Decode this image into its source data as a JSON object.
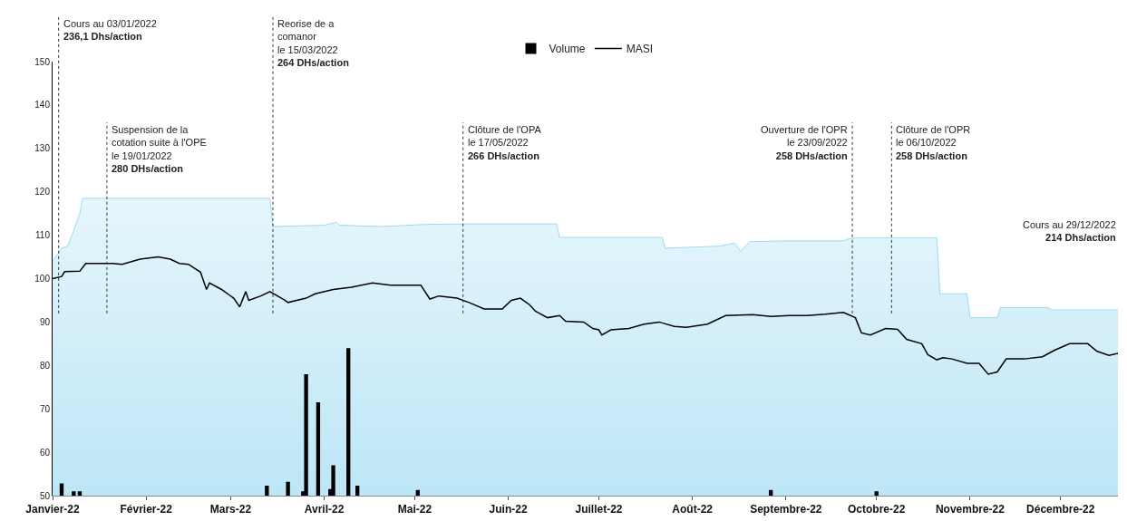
{
  "chart_data": {
    "type": "line",
    "xlim": [
      "2022-01-01",
      "2022-12-20"
    ],
    "xticks": [
      {
        "value": "2022-01-01",
        "label": "Janvier-22"
      },
      {
        "value": "2022-02-01",
        "label": "Février-22"
      },
      {
        "value": "2022-03-01",
        "label": "Mars-22"
      },
      {
        "value": "2022-04-01",
        "label": "Avril-22"
      },
      {
        "value": "2022-05-01",
        "label": "Mai-22"
      },
      {
        "value": "2022-06-01",
        "label": "Juin-22"
      },
      {
        "value": "2022-07-01",
        "label": "Juillet-22"
      },
      {
        "value": "2022-08-01",
        "label": "Août-22"
      },
      {
        "value": "2022-09-01",
        "label": "Septembre-22"
      },
      {
        "value": "2022-10-01",
        "label": "Octobre-22"
      },
      {
        "value": "2022-11-01",
        "label": "Novembre-22"
      },
      {
        "value": "2022-12-01",
        "label": "Décembre-22"
      }
    ],
    "ylim": [
      50,
      150
    ],
    "yticks": [
      50,
      60,
      70,
      80,
      90,
      100,
      110,
      120,
      130,
      140,
      150
    ],
    "grid": false,
    "legend": "top",
    "series": [
      {
        "type": "area",
        "color": "#9edaf2",
        "x": [
          "2022-01-01",
          "2022-01-04",
          "2022-01-06",
          "2022-01-08",
          "2022-01-10",
          "2022-01-11",
          "2022-03-14",
          "2022-03-15",
          "2022-04-01",
          "2022-04-05",
          "2022-04-06",
          "2022-04-20",
          "2022-05-05",
          "2022-05-17",
          "2022-06-17",
          "2022-06-18",
          "2022-07-22",
          "2022-07-23",
          "2022-08-10",
          "2022-08-15",
          "2022-08-17",
          "2022-08-20",
          "2022-09-01",
          "2022-09-20",
          "2022-09-22",
          "2022-09-25",
          "2022-10-21",
          "2022-10-22",
          "2022-10-31",
          "2022-11-01",
          "2022-11-10",
          "2022-11-11",
          "2022-11-27",
          "2022-11-28",
          "2022-12-20"
        ],
        "values": [
          104,
          107,
          107.5,
          111,
          115,
          118.5,
          118.5,
          112,
          112.3,
          113,
          112.3,
          112,
          112.5,
          112.6,
          112.6,
          109.5,
          109.5,
          107,
          107.5,
          108.2,
          106.3,
          108.5,
          108.7,
          108.7,
          109.2,
          109.4,
          109.4,
          96.5,
          96.5,
          91,
          91,
          93.3,
          93.3,
          92.8,
          92.8
        ]
      },
      {
        "type": "bar",
        "name": "Volume",
        "color": "#000000",
        "x": [
          "2022-01-04",
          "2022-01-08",
          "2022-01-10",
          "2022-03-13",
          "2022-03-20",
          "2022-03-25",
          "2022-03-26",
          "2022-03-30",
          "2022-04-03",
          "2022-04-04",
          "2022-04-09",
          "2022-04-12",
          "2022-05-02",
          "2022-08-27",
          "2022-10-01"
        ],
        "values": [
          52.8,
          51,
          51,
          52.3,
          53.2,
          51,
          78,
          71.5,
          51.5,
          57,
          84,
          52.3,
          51.3,
          51.3,
          51
        ]
      },
      {
        "name": "MASI",
        "color": "#000000",
        "x": [
          "2022-01-01",
          "2022-01-04",
          "2022-01-05",
          "2022-01-10",
          "2022-01-12",
          "2022-01-21",
          "2022-01-24",
          "2022-01-30",
          "2022-02-05",
          "2022-02-09",
          "2022-02-12",
          "2022-02-15",
          "2022-02-19",
          "2022-02-21",
          "2022-02-22",
          "2022-02-26",
          "2022-03-02",
          "2022-03-04",
          "2022-03-06",
          "2022-03-07",
          "2022-03-11",
          "2022-03-14",
          "2022-03-19",
          "2022-03-20",
          "2022-03-26",
          "2022-03-29",
          "2022-04-04",
          "2022-04-10",
          "2022-04-17",
          "2022-04-23",
          "2022-05-03",
          "2022-05-06",
          "2022-05-09",
          "2022-05-15",
          "2022-05-19",
          "2022-05-24",
          "2022-05-30",
          "2022-06-02",
          "2022-06-05",
          "2022-06-08",
          "2022-06-10",
          "2022-06-14",
          "2022-06-18",
          "2022-06-20",
          "2022-06-26",
          "2022-06-29",
          "2022-07-01",
          "2022-07-02",
          "2022-07-05",
          "2022-07-11",
          "2022-07-16",
          "2022-07-21",
          "2022-07-26",
          "2022-07-30",
          "2022-08-06",
          "2022-08-12",
          "2022-08-21",
          "2022-08-27",
          "2022-09-02",
          "2022-09-08",
          "2022-09-14",
          "2022-09-20",
          "2022-09-24",
          "2022-09-26",
          "2022-09-29",
          "2022-10-04",
          "2022-10-08",
          "2022-10-11",
          "2022-10-16",
          "2022-10-18",
          "2022-10-21",
          "2022-10-23",
          "2022-10-26",
          "2022-10-31",
          "2022-11-04",
          "2022-11-07",
          "2022-11-10",
          "2022-11-13",
          "2022-11-19",
          "2022-11-25",
          "2022-11-29",
          "2022-12-04",
          "2022-12-10",
          "2022-12-13",
          "2022-12-17",
          "2022-12-20"
        ],
        "values": [
          100,
          100.5,
          101.6,
          101.7,
          103.5,
          103.5,
          103.3,
          104.5,
          105,
          104.5,
          103.5,
          103.3,
          101.5,
          97.5,
          99,
          97.5,
          95.5,
          93.5,
          97,
          95,
          96,
          97,
          95,
          94.5,
          95.5,
          96.5,
          97.5,
          98,
          99,
          98.5,
          98.5,
          95.3,
          96,
          95.5,
          94.5,
          93,
          93,
          95,
          95.5,
          94,
          92.5,
          91,
          91.5,
          90.2,
          90,
          88.5,
          88.2,
          87,
          88.2,
          88.5,
          89.5,
          90,
          89,
          88.8,
          89.5,
          91.5,
          91.7,
          91.3,
          91.5,
          91.5,
          91.8,
          92.2,
          91,
          87.5,
          87,
          88.5,
          88.3,
          86,
          85,
          82.5,
          81.3,
          81.8,
          81.5,
          80.5,
          80.5,
          78,
          78.5,
          81.5,
          81.5,
          82,
          83.5,
          85,
          85,
          83.3,
          82.3,
          82.8
        ]
      }
    ],
    "ref_lines": [
      {
        "axis": "x",
        "value": "2022-01-03",
        "label": "Cours au 03/01/2022\n236,1 Dhs/action",
        "line_style": "dotted",
        "color": "#333333"
      },
      {
        "axis": "x",
        "value": "2022-01-19",
        "label": "Suspension de la\ncotation suite à l'OPE\nle 19/01/2022\n280 DHs/action",
        "line_style": "dotted",
        "color": "#333333"
      },
      {
        "axis": "x",
        "value": "2022-03-15",
        "label": "Reorise de a\ncomanor\nle 15/03/2022\n264 DHs/action",
        "line_style": "dotted",
        "color": "#333333"
      },
      {
        "axis": "x",
        "value": "2022-05-17",
        "label": "Clôture de l'OPA\nle 17/05/2022\n266 DHs/action",
        "line_style": "dotted",
        "color": "#333333"
      },
      {
        "axis": "x",
        "value": "2022-09-23",
        "label": "Ouverture de l'OPR\nle 23/09/2022\n258 DHs/action",
        "line_style": "dotted",
        "color": "#333333"
      },
      {
        "axis": "x",
        "value": "2022-10-06",
        "label": "Clôture de l'OPR\nle 06/10/2022\n258 DHs/action",
        "line_style": "dotted",
        "color": "#333333"
      }
    ],
    "annotations": [
      "Cours au 29/12/2022\n214 Dhs/action"
    ]
  }
}
